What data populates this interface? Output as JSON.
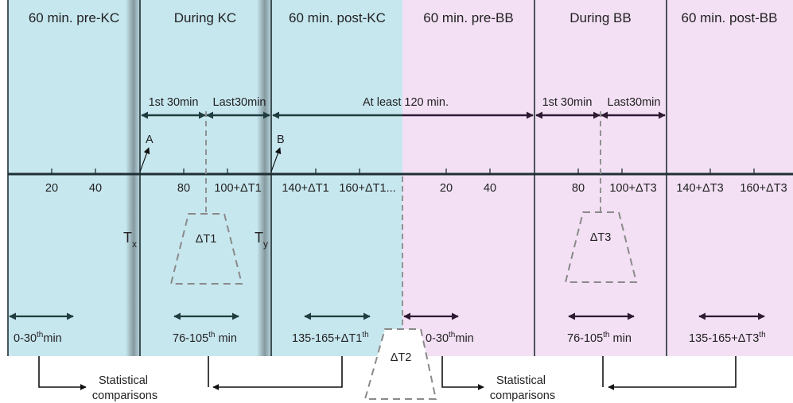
{
  "colors": {
    "kc_background": "#c7e7ef",
    "bb_background": "#f3e0f4",
    "axis": "#1f2f33",
    "arrow_dark": "#1f3d3f",
    "arrow_purple": "#2e1a33",
    "dashed": "#8a8a8a"
  },
  "phases": [
    "60 min. pre-KC",
    "During KC",
    "60 min. post-KC",
    "60 min. pre-BB",
    "During BB",
    "60 min. post-BB"
  ],
  "intervals": {
    "kc_first": "1st 30min",
    "kc_last": "Last30min",
    "gap": "At least 120 min.",
    "bb_first": "1st 30min",
    "bb_last": "Last30min"
  },
  "markers": {
    "a": "A",
    "b": "B",
    "tx_main": "T",
    "tx_sub": "x",
    "ty_main": "T",
    "ty_sub": "y"
  },
  "ticks": {
    "t20": "20",
    "t40": "40",
    "t80": "80",
    "t100dt1": "100+ΔT1",
    "t140dt1": "140+ΔT1",
    "t160dt1": "160+ΔT1...",
    "t20b": "20",
    "t40b": "40",
    "t80b": "80",
    "t100dt3": "100+ΔT3",
    "t140dt3": "140+ΔT3",
    "t160dt3": "160+ΔT3"
  },
  "deltas": {
    "dt1": "ΔT1",
    "dt2": "ΔT2",
    "dt3": "ΔT3"
  },
  "windows": {
    "w1": "0-30",
    "w1_sup": "th",
    "w1_tail": "min",
    "w2": "76-105",
    "w2_sup": "th",
    "w2_tail": " min",
    "w3": "135-165+ΔT1",
    "w3_sup": "th",
    "w3_tail": "",
    "w4": "0-30",
    "w4_sup": "th",
    "w4_tail": "min",
    "w5": "76-105",
    "w5_sup": "th",
    "w5_tail": " min",
    "w6": "135-165+ΔT3",
    "w6_sup": "th",
    "w6_tail": ""
  },
  "comparisons": {
    "left_line1": "Statistical",
    "left_line2": "comparisons",
    "right_line1": "Statistical",
    "right_line2": "comparisons"
  }
}
